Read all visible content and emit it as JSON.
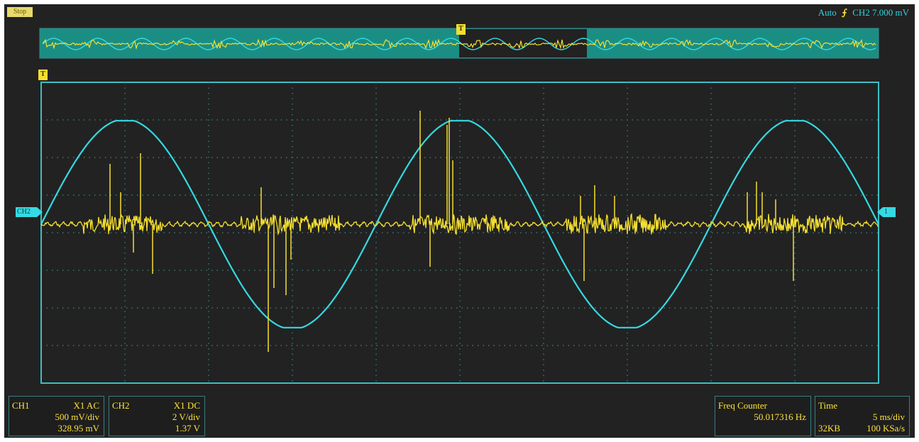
{
  "status_badge": "Stop",
  "trigger": {
    "mode": "Auto",
    "slope_icon": "rising-edge-icon",
    "source_level": "CH2  7.000 mV",
    "marker": "T"
  },
  "markers": {
    "ch2_left": "CH2",
    "ch1_right": "1"
  },
  "panels": {
    "ch1": {
      "label": "CH1",
      "probe_coupling": "X1  AC",
      "scale": "500 mV/div",
      "value": "328.95 mV"
    },
    "ch2": {
      "label": "CH2",
      "probe_coupling": "X1  DC",
      "scale": "2 V/div",
      "value": "1.37 V"
    },
    "freq": {
      "label": "Freq Counter",
      "value": "50.017316 Hz"
    },
    "time": {
      "label": "Time",
      "timebase": "5 ms/div",
      "memory": "32KB",
      "sample_rate": "100 KSa/s"
    }
  },
  "colors": {
    "ch1": "#f4df30",
    "ch2": "#35d9e2",
    "grid": "#3a8b90",
    "background": "#222222"
  },
  "waveforms": {
    "ch2_sine": {
      "cycles_on_screen": 2.5,
      "frequency_hz": 50.017316
    },
    "ch1_noise": {
      "description_level": "partial-discharge bursts near sine zero crossings"
    }
  }
}
